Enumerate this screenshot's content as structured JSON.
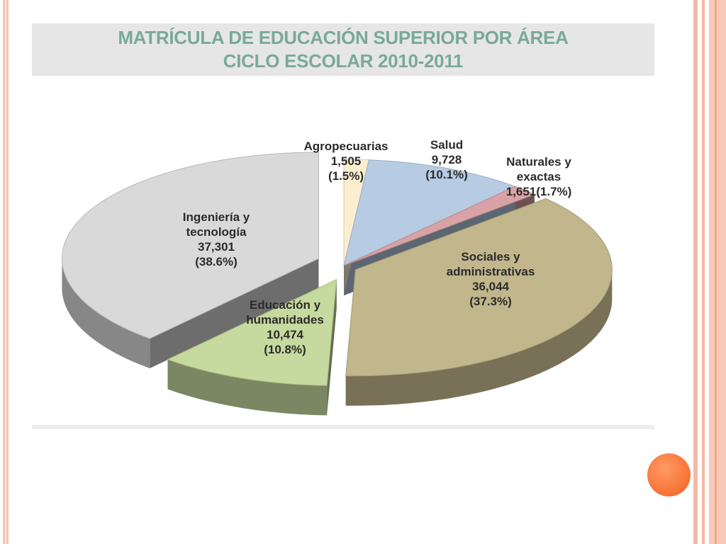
{
  "chart_data": {
    "type": "pie",
    "title": "MATRÍCULA DE EDUCACIÓN SUPERIOR POR ÁREA",
    "subtitle": "CICLO ESCOLAR 2010-2011",
    "slices": [
      {
        "name": "Agropecuarias",
        "value_label": "1,505",
        "pct_label": "(1.5%)",
        "value": 1505,
        "percent": 1.5,
        "color": "#fcefcf"
      },
      {
        "name": "Salud",
        "value_label": "9,728",
        "pct_label": "(10.1%)",
        "value": 9728,
        "percent": 10.1,
        "color": "#b7cbe3"
      },
      {
        "name": "Naturales y exactas",
        "value_label": "1,651",
        "pct_label": "(1.7%)",
        "value": 1651,
        "percent": 1.7,
        "color": "#d9a2a4"
      },
      {
        "name": "Sociales y administrativas",
        "value_label": "36,044",
        "pct_label": "(37.3%)",
        "value": 36044,
        "percent": 37.3,
        "color": "#c1b68c"
      },
      {
        "name": "Educación y humanidades",
        "value_label": "10,474",
        "pct_label": "(10.8%)",
        "value": 10474,
        "percent": 10.8,
        "color": "#c6d99e"
      },
      {
        "name": "Ingeniería y tecnología",
        "value_label": "37,301",
        "pct_label": "(38.6%)",
        "value": 37301,
        "percent": 38.6,
        "color": "#d9d9d9"
      }
    ],
    "labels": {
      "agro": [
        "Agropecuarias",
        "1,505",
        "(1.5%)"
      ],
      "salud": [
        "Salud",
        "9,728",
        "(10.1%)"
      ],
      "naturales": [
        "Naturales y",
        "exactas",
        "1,651(1.7%)"
      ],
      "sociales": [
        "Sociales y",
        "administrativas",
        "36,044",
        "(37.3%)"
      ],
      "educacion": [
        "Educación y",
        "humanidades",
        "10,474",
        "(10.8%)"
      ],
      "ingenieria": [
        "Ingeniería y",
        "tecnología",
        "37,301",
        "(38.6%)"
      ]
    }
  }
}
